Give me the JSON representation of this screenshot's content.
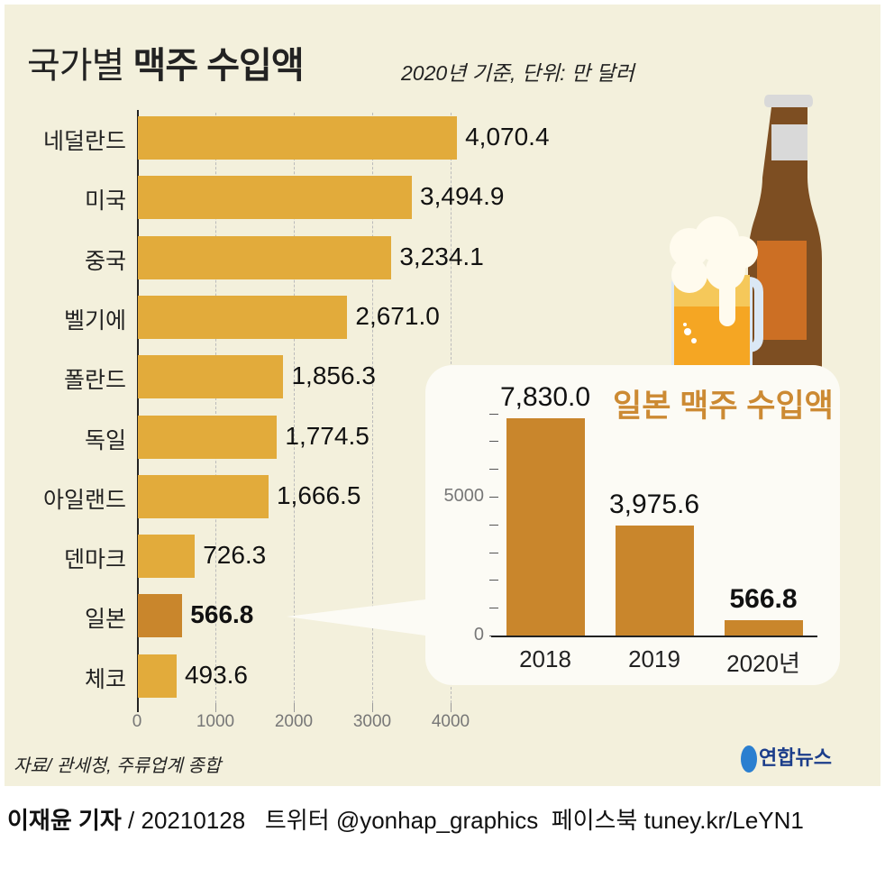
{
  "header": {
    "title_light": "국가별",
    "title_bold": "맥주 수입액",
    "unit": "2020년 기준, 단위: 만 달러"
  },
  "chart_data": [
    {
      "type": "bar",
      "orientation": "horizontal",
      "categories": [
        "네덜란드",
        "미국",
        "중국",
        "벨기에",
        "폴란드",
        "독일",
        "아일랜드",
        "덴마크",
        "일본",
        "체코"
      ],
      "values": [
        4070.4,
        3494.9,
        3234.1,
        2671.0,
        1856.3,
        1774.5,
        1666.5,
        726.3,
        566.8,
        493.6
      ],
      "labels": [
        "4,070.4",
        "3,494.9",
        "3,234.1",
        "2,671.0",
        "1,856.3",
        "1,774.5",
        "1,666.5",
        "726.3",
        "566.8",
        "493.6"
      ],
      "xticks": [
        "0",
        "1000",
        "2000",
        "3000",
        "4000"
      ],
      "xlim": [
        0,
        4000
      ],
      "grid": true,
      "highlight": "일본",
      "colors": {
        "bar": "#e2ab3b",
        "highlight": "#c9862c"
      }
    },
    {
      "type": "bar",
      "title": "일본 맥주 수입액",
      "categories": [
        "2018",
        "2019",
        "2020년"
      ],
      "values": [
        7830.0,
        3975.6,
        566.8
      ],
      "labels": [
        "7,830.0",
        "3,975.6",
        "566.8"
      ],
      "yticks": [
        "0",
        "5000"
      ],
      "ylim": [
        0,
        8000
      ],
      "color": "#c9862c"
    }
  ],
  "source": "자료/ 관세청, 주류업계 종합",
  "logo": "연합뉴스",
  "footer": {
    "author": "이재윤 기자",
    "rest": " / 20210128   트위터 @yonhap_graphics  페이스북 tuney.kr/LeYN1"
  }
}
